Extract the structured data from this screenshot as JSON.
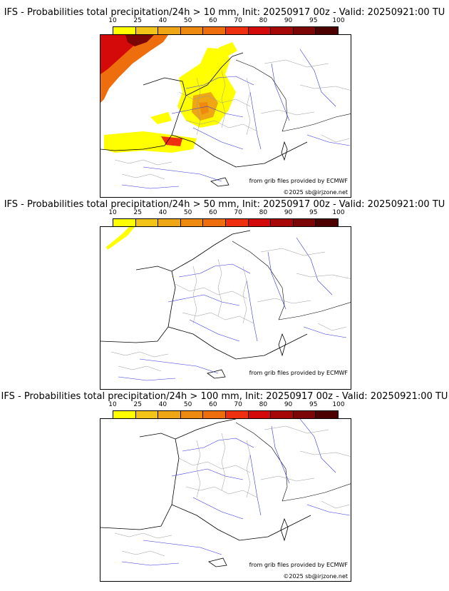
{
  "colors": {
    "scale": [
      "#ffff00",
      "#f2c417",
      "#eea615",
      "#ee8a10",
      "#ee6d0c",
      "#ee3010",
      "#d40a0a",
      "#a60808",
      "#7c0606",
      "#4d0000"
    ],
    "rivers": "#3434e0",
    "borders": "#000000",
    "admin": "#9a9a9a"
  },
  "colorbar_ticks": [
    "10",
    "25",
    "40",
    "50",
    "60",
    "70",
    "80",
    "90",
    "95",
    "100"
  ],
  "panels": [
    {
      "title": "IFS - Probabilities total precipitation/24h > 10 mm, Init: 20250917 00z - Valid: 20250921:00 TU",
      "credit_source": "from grib files provided by ECMWF",
      "credit_copyright": "©2025 sb@irjzone.net"
    },
    {
      "title": "IFS - Probabilities total precipitation/24h > 50 mm, Init: 20250917 00z - Valid: 20250921:00 TU",
      "credit_source": "from grib files provided by ECMWF",
      "credit_copyright": "©2025 sb@irjzone.net"
    },
    {
      "title": "IFS - Probabilities total precipitation/24h > 100 mm, Init: 20250917 00z - Valid: 20250921:00 TU",
      "credit_source": "from grib files provided by ECMWF",
      "credit_copyright": "©2025 sb@irjzone.net"
    }
  ]
}
